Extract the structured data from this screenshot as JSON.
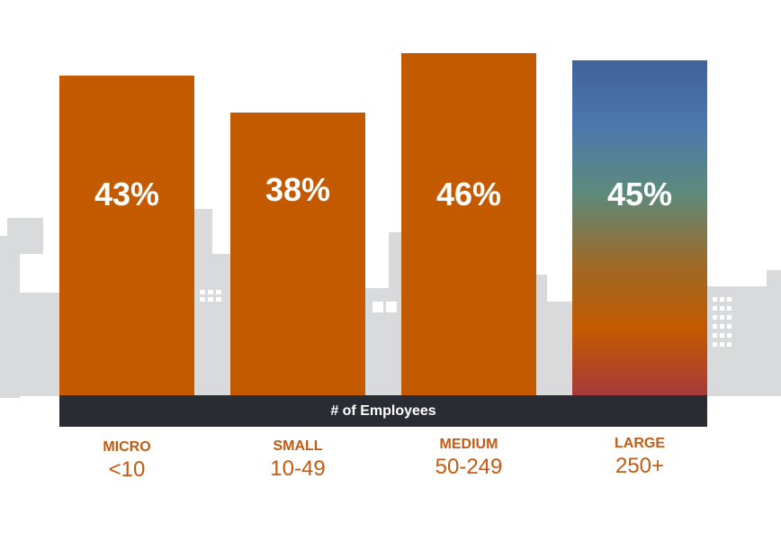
{
  "chart_data": {
    "type": "bar",
    "title": "",
    "xlabel": "# of Employees",
    "ylabel": "",
    "ylim": [
      0,
      50
    ],
    "grid": false,
    "categories": [
      {
        "name": "MICRO",
        "range": "<10"
      },
      {
        "name": "SMALL",
        "range": "10-49"
      },
      {
        "name": "MEDIUM",
        "range": "50-249"
      },
      {
        "name": "LARGE",
        "range": "250+"
      }
    ],
    "values": [
      43,
      38,
      46,
      45
    ],
    "value_labels": [
      "43%",
      "38%",
      "46%",
      "45%"
    ]
  },
  "colors": {
    "bar": "#c45a00",
    "bar_gradient_large": [
      "#3f639a",
      "#4c78ad",
      "#5d8a7a",
      "#9c6a2a",
      "#c45a00",
      "#a73a3a"
    ],
    "band": "#2a2c33",
    "skyline": "#d9dadb",
    "category_text": "#c45a11"
  }
}
